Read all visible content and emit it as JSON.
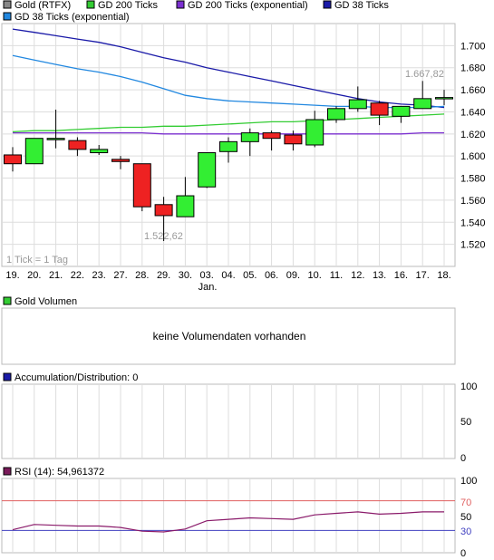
{
  "legend": {
    "items": [
      {
        "label": "Gold (RTFX)",
        "color": "#888888"
      },
      {
        "label": "GD 200 Ticks",
        "color": "#33cc33"
      },
      {
        "label": "GD 200 Ticks (exponential)",
        "color": "#7b2fd0"
      },
      {
        "label": "GD 38 Ticks",
        "color": "#1a1aa8"
      },
      {
        "label": "GD 38 Ticks (exponential)",
        "color": "#2288e0"
      }
    ]
  },
  "main_chart": {
    "tick_note": "1 Tick = 1 Tag",
    "high_label": "1.667,82",
    "low_label": "1.522,62",
    "month_label": "Jan."
  },
  "volume_panel": {
    "title": "Gold Volumen",
    "message": "keine Volumendaten vorhanden",
    "icon_color": "#33cc33"
  },
  "ad_panel": {
    "title": "Accumulation/Distribution: 0",
    "icon_color": "#1a1aa8",
    "ticks": [
      "100",
      "50",
      "0"
    ]
  },
  "rsi_panel": {
    "title": "RSI (14): 54,961372",
    "icon_color": "#7a1a5a",
    "ticks": [
      "100",
      "70",
      "50",
      "30",
      "0"
    ],
    "upper_level": 70,
    "lower_level": 30,
    "upper_color": "#e06060",
    "lower_color": "#4040c0",
    "line_color": "#8a1a6a"
  },
  "chart_data": {
    "type": "candlestick",
    "categories": [
      "19.",
      "20.",
      "21.",
      "22.",
      "23.",
      "27.",
      "28.",
      "29.",
      "30.",
      "03.",
      "04.",
      "05.",
      "06.",
      "09.",
      "10.",
      "11.",
      "12.",
      "13.",
      "16.",
      "17.",
      "18."
    ],
    "ylim": [
      1500,
      1720
    ],
    "yticks": [
      "1.520",
      "1.540",
      "1.560",
      "1.580",
      "1.600",
      "1.620",
      "1.640",
      "1.660",
      "1.680",
      "1.700"
    ],
    "ytick_values": [
      1520,
      1540,
      1560,
      1580,
      1600,
      1620,
      1640,
      1660,
      1680,
      1700
    ],
    "up_color": "#33ee33",
    "down_color": "#ee2222",
    "candles": [
      {
        "o": 1601,
        "h": 1608,
        "l": 1586,
        "c": 1593
      },
      {
        "o": 1593,
        "h": 1616,
        "l": 1593,
        "c": 1616
      },
      {
        "o": 1616,
        "h": 1642,
        "l": 1607,
        "c": 1616
      },
      {
        "o": 1614,
        "h": 1617,
        "l": 1600,
        "c": 1606
      },
      {
        "o": 1603,
        "h": 1610,
        "l": 1601,
        "c": 1606
      },
      {
        "o": 1597,
        "h": 1600,
        "l": 1588,
        "c": 1595
      },
      {
        "o": 1593,
        "h": 1593,
        "l": 1550,
        "c": 1554
      },
      {
        "o": 1556,
        "h": 1563,
        "l": 1523,
        "c": 1546
      },
      {
        "o": 1545,
        "h": 1581,
        "l": 1545,
        "c": 1564
      },
      {
        "o": 1572,
        "h": 1603,
        "l": 1571,
        "c": 1603
      },
      {
        "o": 1604,
        "h": 1617,
        "l": 1594,
        "c": 1613
      },
      {
        "o": 1613,
        "h": 1625,
        "l": 1600,
        "c": 1621
      },
      {
        "o": 1621,
        "h": 1623,
        "l": 1605,
        "c": 1616
      },
      {
        "o": 1619,
        "h": 1623,
        "l": 1605,
        "c": 1611
      },
      {
        "o": 1610,
        "h": 1641,
        "l": 1608,
        "c": 1633
      },
      {
        "o": 1633,
        "h": 1645,
        "l": 1630,
        "c": 1643
      },
      {
        "o": 1643,
        "h": 1663,
        "l": 1640,
        "c": 1651
      },
      {
        "o": 1648,
        "h": 1650,
        "l": 1628,
        "c": 1637
      },
      {
        "o": 1636,
        "h": 1645,
        "l": 1630,
        "c": 1645
      },
      {
        "o": 1643,
        "h": 1668,
        "l": 1643,
        "c": 1652
      },
      {
        "o": 1653,
        "h": 1660,
        "l": 1646,
        "c": 1653
      }
    ],
    "series": [
      {
        "name": "GD 200 Ticks",
        "color": "#33cc33",
        "values": [
          1622,
          1623,
          1623,
          1624,
          1625,
          1626,
          1626,
          1627,
          1627,
          1628,
          1629,
          1630,
          1631,
          1631,
          1632,
          1633,
          1634,
          1635,
          1636,
          1637,
          1638
        ]
      },
      {
        "name": "GD 200 Ticks (exponential)",
        "color": "#7b2fd0",
        "values": [
          1621,
          1621,
          1621,
          1621,
          1621,
          1621,
          1621,
          1620,
          1620,
          1620,
          1620,
          1620,
          1620,
          1620,
          1620,
          1620,
          1620,
          1620,
          1620,
          1621,
          1621
        ]
      },
      {
        "name": "GD 38 Ticks",
        "color": "#1a1aa8",
        "values": [
          1715,
          1712,
          1709,
          1706,
          1703,
          1699,
          1694,
          1689,
          1685,
          1680,
          1676,
          1672,
          1668,
          1664,
          1660,
          1656,
          1652,
          1649,
          1647,
          1646,
          1644
        ]
      },
      {
        "name": "GD 38 Ticks (exponential)",
        "color": "#2288e0",
        "values": [
          1691,
          1687,
          1683,
          1679,
          1676,
          1672,
          1667,
          1661,
          1655,
          1652,
          1650,
          1649,
          1648,
          1647,
          1646,
          1645,
          1645,
          1644,
          1644,
          1644,
          1645
        ]
      }
    ],
    "rsi_values": [
      31,
      38,
      37,
      36,
      36,
      34,
      29,
      28,
      32,
      43,
      45,
      47,
      46,
      45,
      51,
      53,
      55,
      52,
      53,
      55,
      55
    ]
  }
}
